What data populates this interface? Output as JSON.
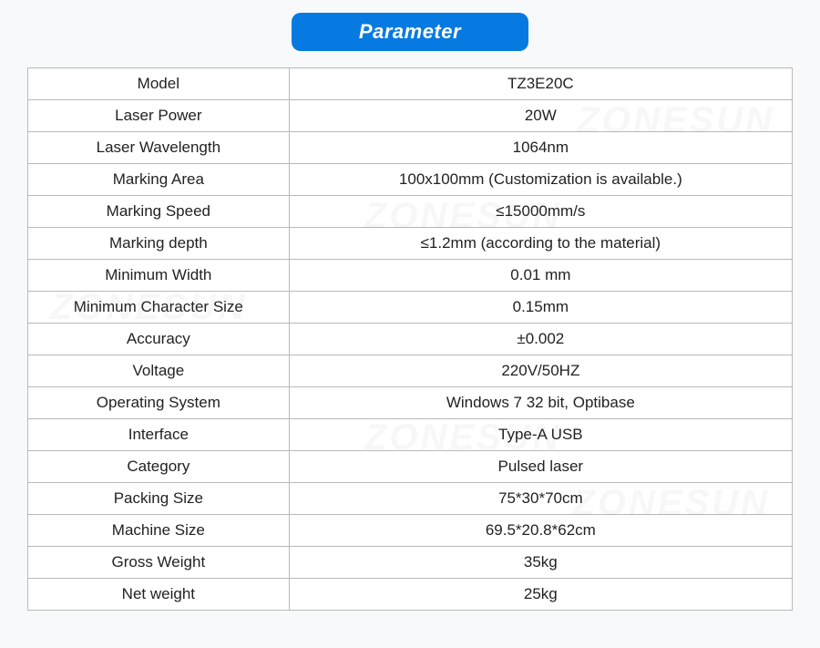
{
  "header": {
    "title": "Parameter"
  },
  "colors": {
    "badge_bg": "#067ae0",
    "badge_fg": "#ffffff",
    "border": "#b9b9b9",
    "text": "#222222",
    "page_bg": "#f7f9fa"
  },
  "table": {
    "rows": [
      {
        "label": "Model",
        "value": "TZ3E20C"
      },
      {
        "label": "Laser Power",
        "value": "20W"
      },
      {
        "label": "Laser Wavelength",
        "value": "1064nm"
      },
      {
        "label": "Marking Area",
        "value": "100x100mm (Customization is available.)"
      },
      {
        "label": "Marking Speed",
        "value": "≤15000mm/s"
      },
      {
        "label": "Marking depth",
        "value": "≤1.2mm (according to the material)"
      },
      {
        "label": "Minimum Width",
        "value": "0.01 mm"
      },
      {
        "label": "Minimum Character Size",
        "value": "0.15mm"
      },
      {
        "label": "Accuracy",
        "value": "±0.002"
      },
      {
        "label": "Voltage",
        "value": "220V/50HZ"
      },
      {
        "label": "Operating System",
        "value": "Windows 7 32 bit, Optibase"
      },
      {
        "label": "Interface",
        "value": "Type-A USB"
      },
      {
        "label": "Category",
        "value": "Pulsed laser"
      },
      {
        "label": "Packing Size",
        "value": "75*30*70cm"
      },
      {
        "label": "Machine Size",
        "value": "69.5*20.8*62cm"
      },
      {
        "label": "Gross Weight",
        "value": "35kg"
      },
      {
        "label": "Net weight",
        "value": "25kg"
      }
    ]
  },
  "watermark": "ZONESUN"
}
